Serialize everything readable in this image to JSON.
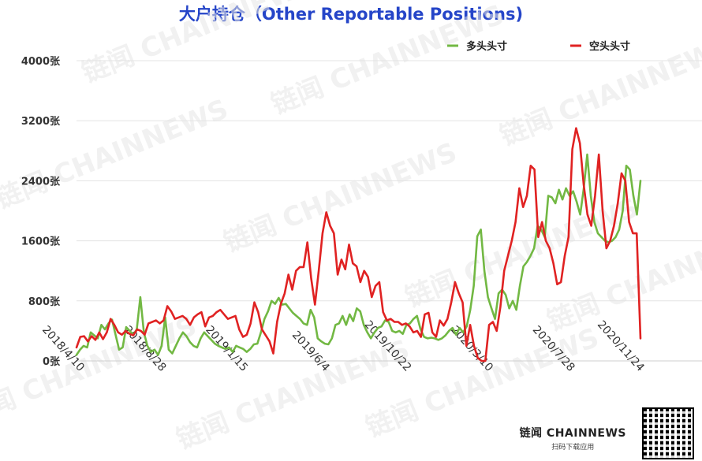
{
  "chart_data": {
    "type": "line",
    "title": "大户持仓（Other Reportable Positions)",
    "ylim": [
      0,
      4000
    ],
    "y_ticks": [
      "0张",
      "800张",
      "1600张",
      "2400张",
      "3200张",
      "4000张"
    ],
    "x_tick_labels": [
      "2018/4/10",
      "2018/8/28",
      "2019/1/15",
      "2019/6/4",
      "2019/10/22",
      "2020/3/10",
      "2020/7/28",
      "2020/11/24"
    ],
    "grid": true,
    "legend_position": "top-right",
    "x_start": "2018-04-10",
    "x_end": "2020-12-01",
    "series": [
      {
        "name": "多头头寸",
        "color": "#72b843",
        "values": [
          80,
          150,
          200,
          180,
          380,
          340,
          300,
          480,
          420,
          500,
          550,
          350,
          150,
          180,
          450,
          400,
          350,
          420,
          850,
          380,
          200,
          120,
          150,
          80,
          200,
          580,
          150,
          100,
          200,
          300,
          380,
          330,
          250,
          200,
          180,
          300,
          380,
          330,
          280,
          230,
          200,
          180,
          160,
          180,
          120,
          200,
          180,
          160,
          120,
          160,
          220,
          230,
          380,
          560,
          660,
          800,
          760,
          840,
          750,
          760,
          700,
          640,
          600,
          560,
          500,
          480,
          680,
          580,
          300,
          260,
          230,
          220,
          300,
          480,
          500,
          600,
          480,
          620,
          530,
          700,
          660,
          480,
          380,
          300,
          380,
          440,
          460,
          540,
          520,
          400,
          380,
          400,
          360,
          480,
          500,
          560,
          600,
          420,
          320,
          300,
          310,
          300,
          280,
          300,
          340,
          400,
          440,
          350,
          440,
          380,
          460,
          680,
          1000,
          1660,
          1750,
          1200,
          850,
          700,
          560,
          900,
          950,
          880,
          700,
          800,
          680,
          1000,
          1260,
          1320,
          1400,
          1500,
          1800,
          1750,
          1650,
          2200,
          2180,
          2100,
          2280,
          2150,
          2300,
          2200,
          2260,
          2120,
          1950,
          2300,
          2750,
          2200,
          1850,
          1700,
          1650,
          1600,
          1580,
          1600,
          1650,
          1750,
          2000,
          2600,
          2550,
          2200,
          1950,
          2400
        ]
      },
      {
        "name": "空头头寸",
        "color": "#e02222",
        "values": [
          180,
          320,
          330,
          260,
          330,
          280,
          380,
          290,
          380,
          560,
          480,
          380,
          350,
          400,
          360,
          340,
          420,
          400,
          350,
          500,
          520,
          540,
          500,
          540,
          730,
          660,
          560,
          580,
          600,
          560,
          480,
          580,
          620,
          650,
          460,
          580,
          600,
          650,
          680,
          620,
          560,
          580,
          600,
          420,
          320,
          350,
          500,
          780,
          650,
          420,
          340,
          260,
          100,
          520,
          760,
          900,
          1150,
          950,
          1200,
          1250,
          1250,
          1580,
          1100,
          750,
          1200,
          1700,
          1980,
          1800,
          1700,
          1150,
          1350,
          1220,
          1550,
          1300,
          1260,
          1050,
          1200,
          1120,
          850,
          1000,
          1050,
          650,
          540,
          560,
          520,
          520,
          480,
          500,
          460,
          380,
          400,
          320,
          620,
          640,
          380,
          320,
          540,
          470,
          560,
          780,
          1050,
          900,
          780,
          200,
          480,
          200,
          40,
          0,
          0,
          480,
          520,
          400,
          720,
          1200,
          1400,
          1600,
          1850,
          2300,
          2050,
          2200,
          2600,
          2550,
          1650,
          1850,
          1600,
          1500,
          1300,
          1020,
          1050,
          1400,
          1650,
          2820,
          3100,
          2900,
          2350,
          1950,
          1800,
          2200,
          2750,
          2000,
          1500,
          1600,
          1800,
          2100,
          2500,
          2400,
          1850,
          1700,
          1700,
          300
        ]
      }
    ]
  },
  "brand": {
    "name": "链闻 CHAINNEWS",
    "sub": "扫码下载应用"
  },
  "watermark_text": "链闻 CHAINNEWS"
}
